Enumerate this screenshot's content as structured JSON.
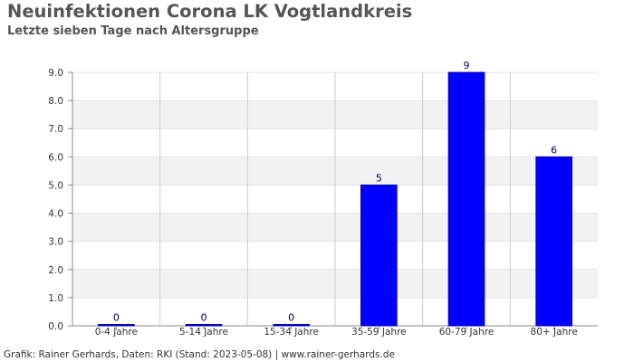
{
  "title": "Neuinfektionen Corona LK Vogtlandkreis",
  "subtitle": "Letzte sieben Tage nach Altersgruppe",
  "footer": "Grafik: Rainer Gerhards, Daten: RKI (Stand: 2023-05-08) | www.rainer-gerhards.de",
  "chart_data": {
    "type": "bar",
    "title": "Neuinfektionen Corona LK Vogtlandkreis",
    "subtitle": "Letzte sieben Tage nach Altersgruppe",
    "categories": [
      "0-4 Jahre",
      "5-14 Jahre",
      "15-34 Jahre",
      "35-59 Jahre",
      "60-79 Jahre",
      "80+ Jahre"
    ],
    "values": [
      0,
      0,
      0,
      5,
      9,
      6
    ],
    "data_labels": [
      "0",
      "0",
      "0",
      "5",
      "9",
      "6"
    ],
    "y_ticks": [
      "0.0",
      "1.0",
      "2.0",
      "3.0",
      "4.0",
      "5.0",
      "6.0",
      "7.0",
      "8.0",
      "9.0"
    ],
    "ylim": [
      0,
      9
    ],
    "xlabel": "",
    "ylabel": "",
    "grid": true,
    "legend": "none",
    "colors": {
      "bar": "#0000ff",
      "bar_edge": "#0000aa",
      "data_label": "#000066",
      "band": "#f2f2f2",
      "grid": "#cccccc",
      "axis": "#888888",
      "tick_label": "#333333"
    }
  }
}
